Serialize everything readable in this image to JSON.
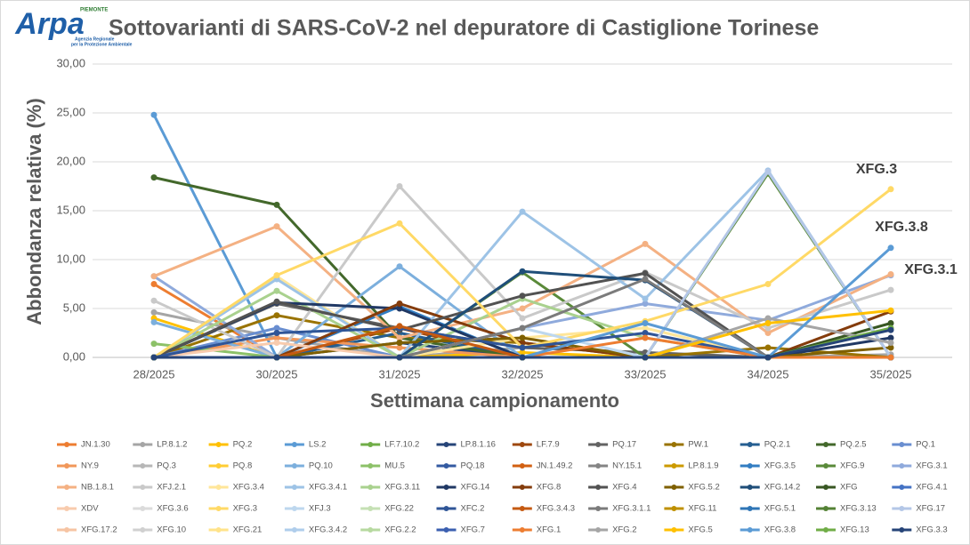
{
  "logo": {
    "name": "Arpa",
    "region": "PIEMONTE",
    "agency_line1": "Agenzia Regionale",
    "agency_line2": "per la Protezione Ambientale"
  },
  "chart_data": {
    "type": "line",
    "title": "Sottovarianti di SARS-CoV-2 nel depuratore di Castiglione Torinese",
    "x_label": "Settimana campionamento",
    "y_label": "Abbondanza relativa (%)",
    "categories": [
      "28/2025",
      "30/2025",
      "31/2025",
      "32/2025",
      "33/2025",
      "34/2025",
      "35/2025"
    ],
    "ylim": [
      0,
      30
    ],
    "yticks": [
      {
        "value": 0,
        "label": "0,00"
      },
      {
        "value": 5,
        "label": "5,00"
      },
      {
        "value": 10,
        "label": "10,00"
      },
      {
        "value": 15,
        "label": "15,00"
      },
      {
        "value": 20,
        "label": "20,00"
      },
      {
        "value": 25,
        "label": "25,00"
      },
      {
        "value": 30,
        "label": "30,00"
      }
    ],
    "grid": true,
    "annotations": [
      {
        "text": "XFG.3"
      },
      {
        "text": "XFG.3.8"
      },
      {
        "text": "XFG.3.1"
      }
    ],
    "series": [
      {
        "name": "JN.1.30",
        "color": "#ED7D31",
        "values": [
          7.5,
          0,
          0,
          0,
          0,
          0,
          0
        ]
      },
      {
        "name": "LP.8.1.2",
        "color": "#A5A5A5",
        "values": [
          4.6,
          2,
          0,
          1,
          0.5,
          0,
          0.3
        ]
      },
      {
        "name": "PQ.2",
        "color": "#FFC000",
        "values": [
          4,
          0,
          0,
          0.5,
          0,
          0,
          0
        ]
      },
      {
        "name": "LS.2",
        "color": "#5B9BD5",
        "values": [
          24.8,
          0,
          0,
          0,
          0,
          0,
          0
        ]
      },
      {
        "name": "LF.7.10.2",
        "color": "#70AD47",
        "values": [
          0,
          0,
          0,
          0,
          0,
          0,
          0
        ]
      },
      {
        "name": "LP.8.1.16",
        "color": "#264478",
        "values": [
          0,
          0,
          1.5,
          0,
          0,
          0,
          0
        ]
      },
      {
        "name": "LF.7.9",
        "color": "#9E480E",
        "values": [
          0,
          0,
          3,
          0,
          0,
          0,
          0
        ]
      },
      {
        "name": "PQ.17",
        "color": "#636363",
        "values": [
          0,
          5.5,
          3,
          1,
          0.5,
          0,
          0
        ]
      },
      {
        "name": "PW.1",
        "color": "#997300",
        "values": [
          0,
          4.3,
          2,
          1.5,
          0,
          1,
          0
        ]
      },
      {
        "name": "PQ.2.1",
        "color": "#255E91",
        "values": [
          0,
          0,
          2.5,
          0,
          0,
          0,
          0
        ]
      },
      {
        "name": "PQ.2.5",
        "color": "#43682B",
        "values": [
          18.4,
          15.6,
          2,
          0,
          0,
          0,
          0
        ]
      },
      {
        "name": "PQ.1",
        "color": "#698ED0",
        "values": [
          0,
          3,
          0,
          0,
          0,
          0,
          0
        ]
      },
      {
        "name": "NY.9",
        "color": "#F1975A",
        "values": [
          0,
          2,
          1,
          0,
          0,
          0,
          0
        ]
      },
      {
        "name": "PQ.3",
        "color": "#B7B7B7",
        "values": [
          0,
          0,
          0,
          0,
          0,
          0,
          0
        ]
      },
      {
        "name": "PQ.8",
        "color": "#FFCD33",
        "values": [
          0,
          0,
          0,
          0,
          0,
          0,
          0
        ]
      },
      {
        "name": "PQ.10",
        "color": "#7CAFDD",
        "values": [
          3.6,
          0,
          9.3,
          0,
          0,
          0,
          0
        ]
      },
      {
        "name": "MU.5",
        "color": "#8CC168",
        "values": [
          1.4,
          0,
          0,
          0,
          0,
          0,
          0
        ]
      },
      {
        "name": "PQ.18",
        "color": "#335AA1",
        "values": [
          0,
          0,
          0,
          0,
          0,
          0,
          0
        ]
      },
      {
        "name": "JN.1.49.2",
        "color": "#D26012",
        "values": [
          0,
          0,
          0,
          0,
          0,
          0,
          0
        ]
      },
      {
        "name": "NY.15.1",
        "color": "#848484",
        "values": [
          0,
          0,
          0,
          0,
          0,
          0,
          0
        ]
      },
      {
        "name": "LP.8.1.9",
        "color": "#CC9A00",
        "values": [
          0,
          0,
          0,
          0,
          0,
          0,
          0
        ]
      },
      {
        "name": "XFG.3.5",
        "color": "#327DC2",
        "values": [
          0,
          0,
          5.2,
          0,
          0,
          0,
          0
        ]
      },
      {
        "name": "XFG.9",
        "color": "#5A8A39",
        "values": [
          0,
          0,
          0,
          8.7,
          0,
          18.8,
          0
        ]
      },
      {
        "name": "XFG.3.1",
        "color": "#8FAADC",
        "values": [
          8.3,
          0,
          0,
          3,
          5.5,
          3.8,
          8.4
        ]
      },
      {
        "name": "NB.1.8.1",
        "color": "#F4B183",
        "values": [
          8.3,
          13.4,
          2,
          5,
          11.6,
          2.5,
          8.5
        ]
      },
      {
        "name": "XFJ.2.1",
        "color": "#C9C9C9",
        "values": [
          5.8,
          0,
          17.5,
          4,
          8.7,
          3,
          6.9
        ]
      },
      {
        "name": "XFG.3.4",
        "color": "#FFE699",
        "values": [
          0,
          8.3,
          0,
          2,
          3,
          0,
          0
        ]
      },
      {
        "name": "XFG.3.4.1",
        "color": "#9DC3E6",
        "values": [
          0,
          8,
          0,
          14.9,
          6,
          19.1,
          0
        ]
      },
      {
        "name": "XFG.3.11",
        "color": "#A9D18E",
        "values": [
          0,
          6.8,
          0,
          6,
          2,
          0,
          0
        ]
      },
      {
        "name": "XFG.14",
        "color": "#203864",
        "values": [
          0,
          5.6,
          5,
          0,
          0,
          0,
          2
        ]
      },
      {
        "name": "XFG.8",
        "color": "#843C0C",
        "values": [
          0,
          0,
          5.5,
          1.5,
          0,
          0,
          4.7
        ]
      },
      {
        "name": "XFG.4",
        "color": "#525252",
        "values": [
          0,
          5.7,
          2.8,
          6.3,
          8.6,
          0,
          0
        ]
      },
      {
        "name": "XFG.5.2",
        "color": "#7F6000",
        "values": [
          0,
          0,
          1.5,
          2,
          0,
          0,
          1
        ]
      },
      {
        "name": "XFG.14.2",
        "color": "#1F4E79",
        "values": [
          0,
          0,
          0,
          8.8,
          7.9,
          0,
          0
        ]
      },
      {
        "name": "XFG",
        "color": "#385723",
        "values": [
          0,
          0,
          0,
          0,
          0,
          0,
          3.5
        ]
      },
      {
        "name": "XFG.4.1",
        "color": "#4472C4",
        "values": [
          0,
          0,
          0,
          0,
          0,
          0,
          0
        ]
      },
      {
        "name": "XDV",
        "color": "#F8CBAD",
        "values": [
          0,
          1.5,
          0,
          0,
          0,
          0,
          0
        ]
      },
      {
        "name": "XFG.3.6",
        "color": "#DBDBDB",
        "values": [
          0,
          0,
          0,
          0,
          0,
          0,
          0
        ]
      },
      {
        "name": "XFG.3",
        "color": "#FFD966",
        "values": [
          0,
          8.4,
          13.7,
          1,
          3.7,
          7.5,
          17.2
        ]
      },
      {
        "name": "XFJ.3",
        "color": "#BDD7EE",
        "values": [
          0,
          0,
          0,
          3,
          0,
          0,
          0
        ]
      },
      {
        "name": "XFG.22",
        "color": "#C5E0B4",
        "values": [
          0,
          0,
          0,
          0,
          0,
          0,
          0
        ]
      },
      {
        "name": "XFC.2",
        "color": "#2F5597",
        "values": [
          0,
          2.5,
          3,
          1,
          2.5,
          0,
          0
        ]
      },
      {
        "name": "XFG.3.4.3",
        "color": "#C55A11",
        "values": [
          0,
          0,
          3.2,
          0,
          0,
          0,
          0
        ]
      },
      {
        "name": "XFG.3.1.1",
        "color": "#7B7B7B",
        "values": [
          0,
          0,
          0,
          3,
          8,
          0,
          0
        ]
      },
      {
        "name": "XFG.11",
        "color": "#BF9000",
        "values": [
          0,
          0,
          0,
          0,
          0,
          0,
          0
        ]
      },
      {
        "name": "XFG.5.1",
        "color": "#2E75B6",
        "values": [
          0,
          0,
          0,
          0,
          0,
          0,
          0
        ]
      },
      {
        "name": "XFG.3.13",
        "color": "#548235",
        "values": [
          0,
          0,
          0,
          0,
          0,
          0,
          0
        ]
      },
      {
        "name": "XFG.17",
        "color": "#B4C7E7",
        "values": [
          0,
          0,
          0,
          0,
          0,
          19,
          0
        ]
      },
      {
        "name": "XFG.17.2",
        "color": "#F6C4A3",
        "values": [
          0,
          0,
          0,
          0,
          0,
          0,
          0
        ]
      },
      {
        "name": "XFG.10",
        "color": "#D0D0D0",
        "values": [
          0,
          0,
          0,
          0,
          0,
          0,
          0
        ]
      },
      {
        "name": "XFG.21",
        "color": "#FFE38A",
        "values": [
          0,
          0,
          0,
          0,
          0,
          0,
          0
        ]
      },
      {
        "name": "XFG.3.4.2",
        "color": "#AFCDEB",
        "values": [
          0,
          0,
          0,
          0,
          0,
          0,
          0
        ]
      },
      {
        "name": "XFG.2.2",
        "color": "#B7D9A0",
        "values": [
          0,
          0,
          0,
          0,
          0,
          0,
          0
        ]
      },
      {
        "name": "XFG.7",
        "color": "#3B5FB0",
        "values": [
          0,
          0,
          0,
          0,
          0,
          0,
          0
        ]
      },
      {
        "name": "XFG.1",
        "color": "#ED7D31",
        "values": [
          0,
          0,
          0,
          0,
          2,
          0,
          0
        ]
      },
      {
        "name": "XFG.2",
        "color": "#A5A5A5",
        "values": [
          0,
          0,
          0,
          0,
          0,
          4,
          1.5
        ]
      },
      {
        "name": "XFG.5",
        "color": "#FFC000",
        "values": [
          0,
          0,
          0,
          0,
          0,
          3.5,
          4.8
        ]
      },
      {
        "name": "XFG.3.8",
        "color": "#5B9BD5",
        "values": [
          0,
          0,
          0,
          0,
          3.5,
          0,
          11.2
        ]
      },
      {
        "name": "XFG.13",
        "color": "#70AD47",
        "values": [
          0,
          0,
          0,
          0,
          0,
          0,
          3
        ]
      },
      {
        "name": "XFG.3.3",
        "color": "#264478",
        "values": [
          0,
          0,
          0,
          0,
          0,
          0,
          2.8
        ]
      }
    ]
  }
}
